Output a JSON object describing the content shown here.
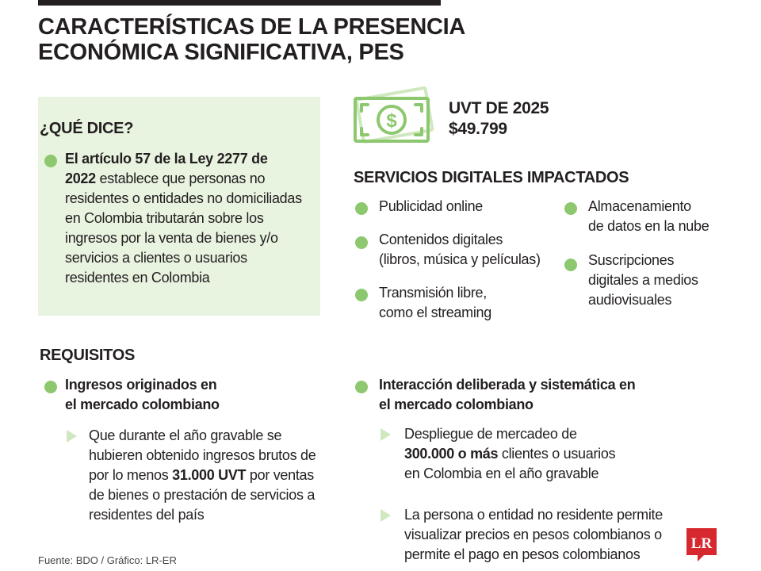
{
  "title_line1": "CARACTERÍSTICAS DE LA PRESENCIA",
  "title_line2": "ECONÓMICA SIGNIFICATIVA, PES",
  "que_dice": {
    "heading": "¿QUÉ DICE?",
    "bold_lines": [
      "El artículo 57 de la Ley 2277 de",
      "2022"
    ],
    "rest_first": " establece que personas no",
    "lines": [
      "residentes o entidades no domiciliadas",
      "en Colombia tributarán sobre los",
      "ingresos por la venta de bienes y/o",
      "servicios a clientes o usuarios",
      "residentes en Colombia"
    ]
  },
  "uvt": {
    "label": "UVT DE 2025",
    "value": "$49.799",
    "icon": "money-bill-icon"
  },
  "servicios": {
    "heading": "SERVICIOS DIGITALES IMPACTADOS",
    "left": [
      {
        "l1": "Publicidad online",
        "l2": ""
      },
      {
        "l1": "Contenidos digitales",
        "l2": "(libros, música y películas)"
      },
      {
        "l1": "Transmisión libre,",
        "l2": "como el streaming"
      }
    ],
    "right": [
      {
        "l1": "Almacenamiento",
        "l2": "de datos en la nube",
        "l3": ""
      },
      {
        "l1": "Suscripciones",
        "l2": "digitales a medios",
        "l3": "audiovisuales"
      }
    ]
  },
  "requisitos": {
    "heading": "REQUISITOS",
    "req1": {
      "title1": "Ingresos originados en",
      "title2": "el mercado colombiano",
      "d1": "Que durante el año gravable se",
      "d2": "hubieren obtenido ingresos brutos de",
      "d3_pre": "por lo menos ",
      "d3_bold": "31.000 UVT",
      "d3_post": " por ventas",
      "d4": "de bienes o prestación de servicios a",
      "d5": "residentes del país"
    },
    "req2": {
      "title1": "Interacción deliberada y sistemática en",
      "title2": "el mercado colombiano",
      "a1": "Despliegue de mercadeo de",
      "a2_bold": "300.000 o más",
      "a2_post": " clientes o usuarios",
      "a3": "en Colombia en el año gravable",
      "b1": "La persona o entidad no residente permite",
      "b2": "visualizar precios en pesos colombianos o",
      "b3": "permite el pago en pesos colombianos"
    }
  },
  "source": "Fuente: BDO / Gráfico: LR-ER",
  "logo_text": "LR",
  "colors": {
    "bullet": "#8dc86f",
    "box": "#e8f3e0",
    "triangle": "#cfe8bf",
    "logo": "#d7282f",
    "text": "#231f20"
  }
}
